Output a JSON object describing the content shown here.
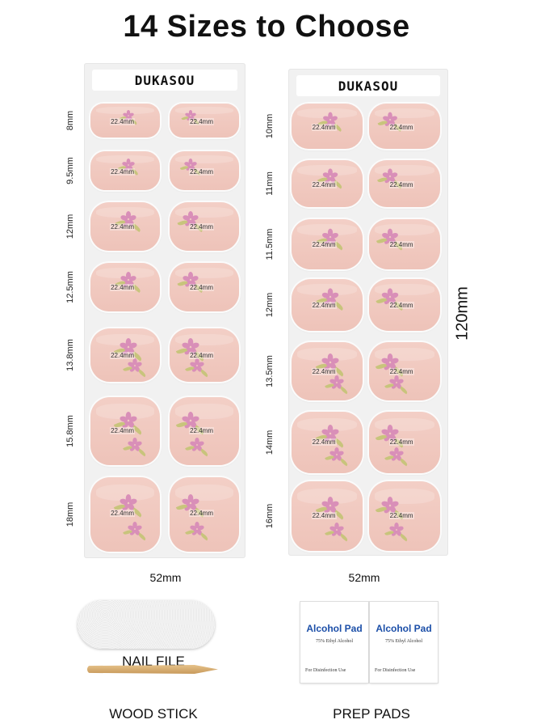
{
  "title": "14 Sizes to Choose",
  "sheets": [
    {
      "brand": "DUKASOU",
      "width_label": "52mm",
      "rows": [
        {
          "size": "8mm",
          "left_label": "22.4mm",
          "right_label": "22.4mm"
        },
        {
          "size": "9.5mm",
          "left_label": "22.4mm",
          "right_label": "22.4mm"
        },
        {
          "size": "12mm",
          "left_label": "22.4mm",
          "right_label": "22.4mm"
        },
        {
          "size": "12.5mm",
          "left_label": "22.4mm",
          "right_label": "22.4mm"
        },
        {
          "size": "13.8mm",
          "left_label": "22.4mm",
          "right_label": "22.4mm"
        },
        {
          "size": "15.8mm",
          "left_label": "22.4mm",
          "right_label": "22.4mm"
        },
        {
          "size": "18mm",
          "left_label": "22.4mm",
          "right_label": "22.4mm"
        }
      ]
    },
    {
      "brand": "DUKASOU",
      "width_label": "52mm",
      "rows": [
        {
          "size": "10mm",
          "left_label": "22.4mm",
          "right_label": "22.4mm"
        },
        {
          "size": "11mm",
          "left_label": "22.4mm",
          "right_label": "22.4mm"
        },
        {
          "size": "11.5mm",
          "left_label": "22.4mm",
          "right_label": "22.4mm"
        },
        {
          "size": "12mm",
          "left_label": "22.4mm",
          "right_label": "22.4mm"
        },
        {
          "size": "13.5mm",
          "left_label": "22.4mm",
          "right_label": "22.4mm"
        },
        {
          "size": "14mm",
          "left_label": "22.4mm",
          "right_label": "22.4mm"
        },
        {
          "size": "16mm",
          "left_label": "22.4mm",
          "right_label": "22.4mm"
        }
      ]
    }
  ],
  "height_label": "120mm",
  "accessories": {
    "nail_file_label": "NAIL FILE",
    "wood_stick_label": "WOOD STICK",
    "prep_pads_label": "PREP PADS",
    "pads": [
      {
        "title": "Alcohol Pad",
        "subtitle": "75% Ethyl Alcohol",
        "footer": "For Disinfection Use"
      },
      {
        "title": "Alcohol Pad",
        "subtitle": "75% Ethyl Alcohol",
        "footer": "For Disinfection Use"
      }
    ]
  },
  "colors": {
    "nail": "#f0c8be",
    "flower": "#d98fb8",
    "leaf": "#c8c47c",
    "pad_text": "#1c4fa8"
  }
}
